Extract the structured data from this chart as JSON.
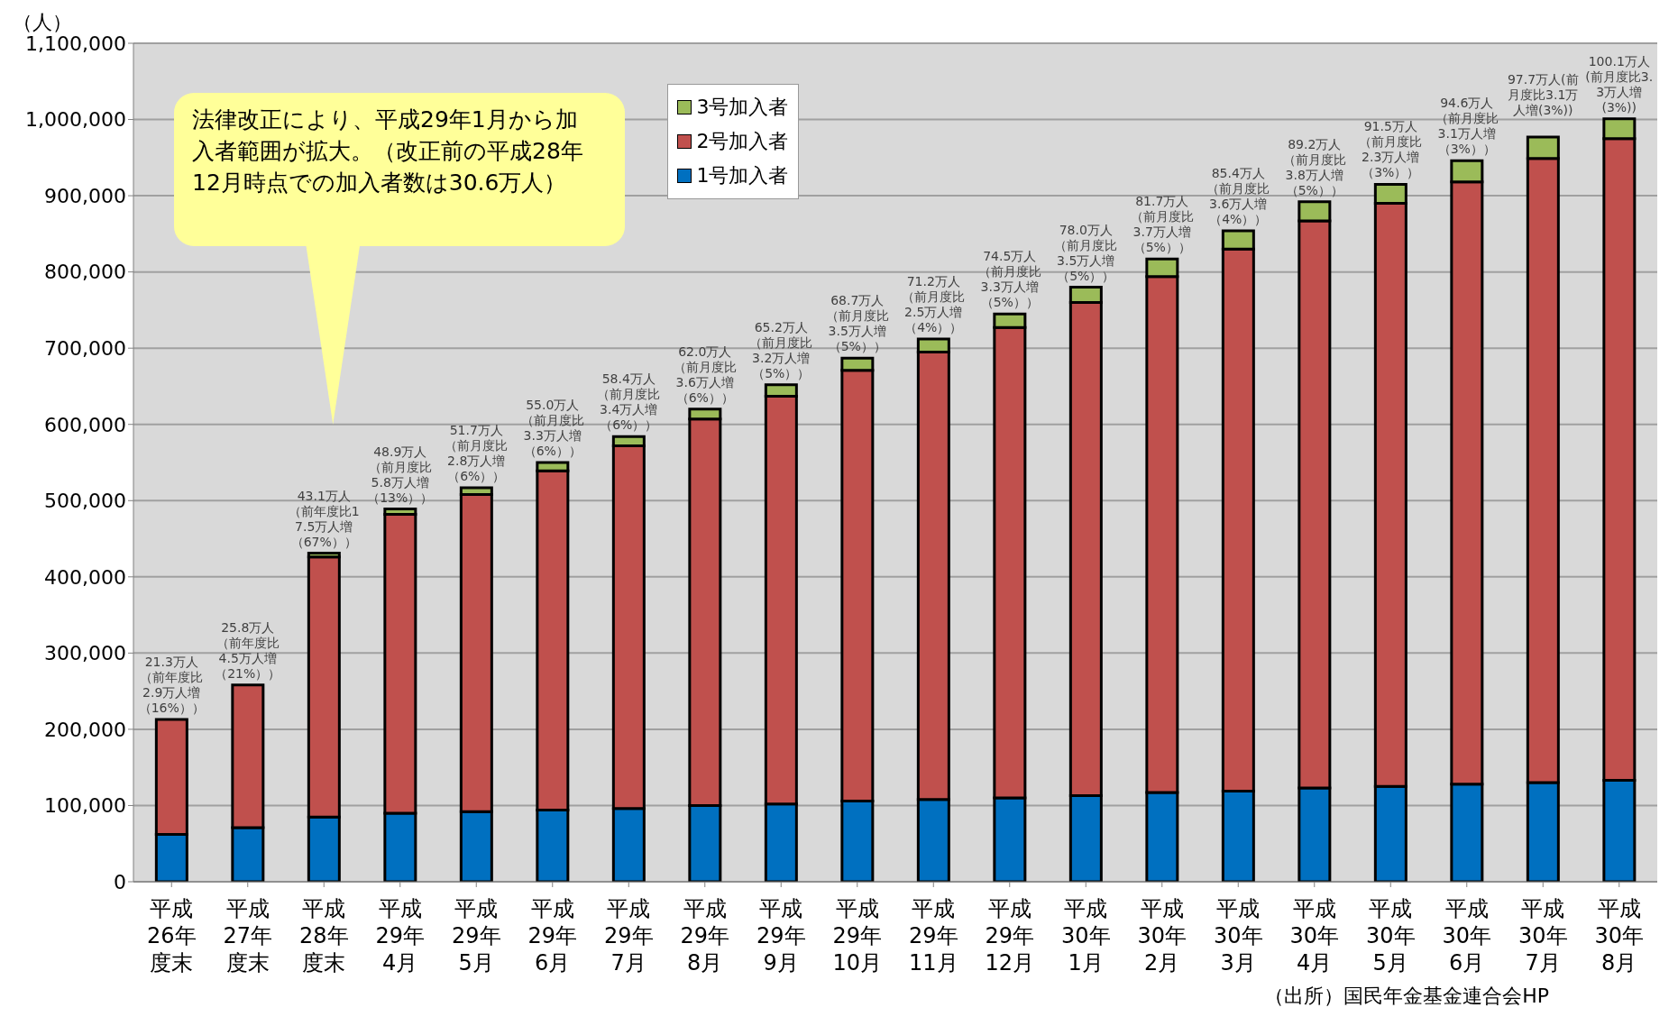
{
  "chart_data": {
    "type": "bar",
    "stacked": true,
    "ylabel": "（人）",
    "categories": [
      "平成26年度末",
      "平成27年度末",
      "平成28年度末",
      "平成29年4月",
      "平成29年5月",
      "平成29年6月",
      "平成29年7月",
      "平成29年8月",
      "平成29年9月",
      "平成29年10月",
      "平成29年11月",
      "平成29年12月",
      "平成30年1月",
      "平成30年2月",
      "平成30年3月",
      "平成30年4月",
      "平成30年5月",
      "平成30年6月",
      "平成30年7月",
      "平成30年8月"
    ],
    "series": [
      {
        "name": "1号加入者",
        "color": "#0070c0",
        "values": [
          62000,
          71000,
          85000,
          90000,
          92000,
          94000,
          96000,
          100000,
          102000,
          106000,
          108000,
          110000,
          113000,
          117000,
          119000,
          123000,
          125000,
          128000,
          130000,
          133000
        ]
      },
      {
        "name": "2号加入者",
        "color": "#c0504d",
        "values": [
          151000,
          187000,
          341000,
          392000,
          416000,
          445000,
          476000,
          507000,
          535000,
          565000,
          587000,
          617000,
          647000,
          677000,
          711000,
          744000,
          765000,
          790000,
          819000,
          842000
        ]
      },
      {
        "name": "3号加入者",
        "color": "#9bbb59",
        "values": [
          null,
          null,
          5000,
          7000,
          9000,
          11000,
          12000,
          13000,
          15000,
          16000,
          17000,
          18000,
          20000,
          23000,
          24000,
          25000,
          25000,
          28000,
          28000,
          26000
        ]
      }
    ],
    "totals": [
      "21.3万人（前年度比2.9万人増（16%））",
      "25.8万人（前年度比4.5万人増（21%））",
      "43.1万人（前年度比17.5万人増（67%））",
      "48.9万人（前月度比5.8万人増（13%））",
      "51.7万人（前月度比2.8万人増（6%））",
      "55.0万人（前月度比3.3万人増（6%））",
      "58.4万人（前月度比3.4万人増（6%））",
      "62.0万人（前月度比3.6万人増（6%））",
      "65.2万人（前月度比3.2万人増（5%））",
      "68.7万人（前月度比3.5万人増（5%））",
      "71.2万人（前月度比2.5万人増（4%））",
      "74.5万人（前月度比3.3万人増（5%））",
      "78.0万人（前月度比3.5万人増（5%））",
      "81.7万人（前月度比3.7万人増（5%））",
      "85.4万人（前月度比3.6万人増（4%））",
      "89.2万人（前月度比3.8万人増（5%））",
      "91.5万人（前月度比2.3万人増（3%））",
      "94.6万人（前月度比3.1万人増（3%））",
      "97.7万人(前月度比3.1万人増(3%))",
      "100.1万人(前月度比3.3万人増(3%))"
    ],
    "ylim": [
      0,
      1100000
    ],
    "yticks": [
      {
        "value": 0,
        "label": "0"
      },
      {
        "value": 100000,
        "label": "100,000"
      },
      {
        "value": 200000,
        "label": "200,000"
      },
      {
        "value": 300000,
        "label": "300,000"
      },
      {
        "value": 400000,
        "label": "400,000"
      },
      {
        "value": 500000,
        "label": "500,000"
      },
      {
        "value": 600000,
        "label": "600,000"
      },
      {
        "value": 700000,
        "label": "700,000"
      },
      {
        "value": 800000,
        "label": "800,000"
      },
      {
        "value": 900000,
        "label": "900,000"
      },
      {
        "value": 1000000,
        "label": "1,000,000"
      },
      {
        "value": 1100000,
        "label": "1,100,000"
      }
    ],
    "grid": "y",
    "legend": "top",
    "annotations": [
      "法律改正により、平成29年1月から加入者範囲が拡大。（改正前の平成28年12月時点での加入者数は30.6万人）",
      "（出所）国民年金基金連合会HP"
    ]
  }
}
